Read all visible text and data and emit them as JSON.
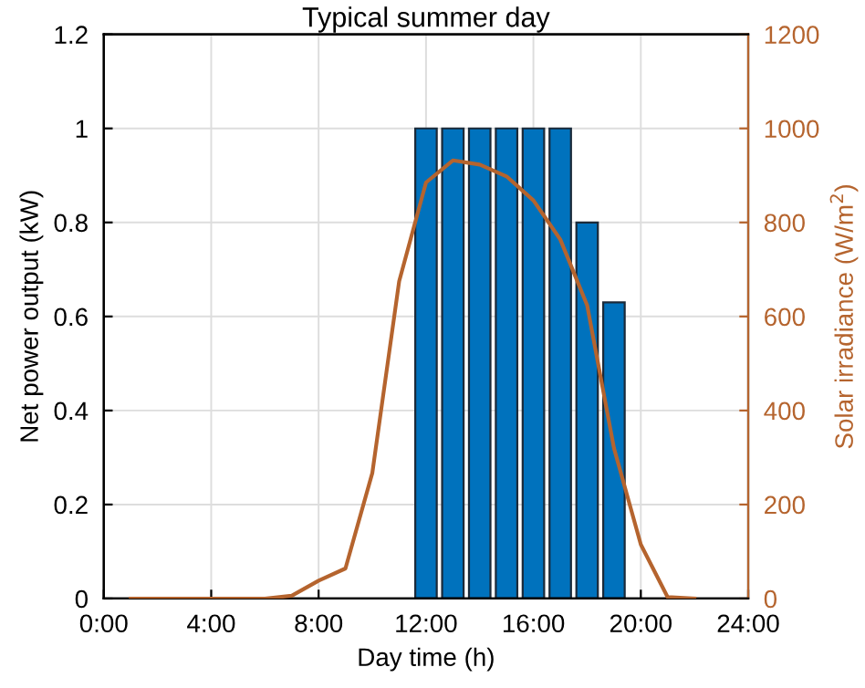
{
  "chart_data": {
    "type": "bar",
    "title": "Typical summer day",
    "xlabel": "Day time (h)",
    "ylabel": "Net power output (kW)",
    "y2label": "Solar irradiance (W/m$^{2}$)",
    "xlim": [
      0,
      24
    ],
    "xticks": [
      {
        "value": 0,
        "label": "0:00"
      },
      {
        "value": 4,
        "label": "4:00"
      },
      {
        "value": 8,
        "label": "8:00"
      },
      {
        "value": 12,
        "label": "12:00"
      },
      {
        "value": 16,
        "label": "16:00"
      },
      {
        "value": 20,
        "label": "20:00"
      },
      {
        "value": 24,
        "label": "24:00"
      }
    ],
    "ylim": [
      0,
      1.2
    ],
    "yticks": [
      0,
      0.2,
      0.4,
      0.6,
      0.8,
      1,
      1.2
    ],
    "y2lim": [
      0,
      1200
    ],
    "y2ticks": [
      0,
      200,
      400,
      600,
      800,
      1000,
      1200
    ],
    "grid": true,
    "series": [
      {
        "color": "#0072bd",
        "x": [
          12,
          13,
          14,
          15,
          16,
          17,
          18,
          19
        ],
        "values": [
          1,
          1,
          1,
          1,
          1,
          1,
          0.8,
          0.63
        ]
      },
      {
        "type": "line",
        "axis": "y2",
        "color": "#b5642e",
        "x": [
          1,
          2,
          3,
          4,
          5,
          6,
          7,
          8,
          9,
          10,
          11,
          12,
          13,
          14,
          15,
          16,
          17,
          18,
          19,
          20,
          21,
          22
        ],
        "values": [
          0,
          0,
          0,
          0,
          0,
          0,
          6,
          38,
          64,
          267,
          675,
          885,
          932,
          923,
          898,
          847,
          764,
          624,
          320,
          115,
          3,
          0
        ]
      }
    ]
  }
}
